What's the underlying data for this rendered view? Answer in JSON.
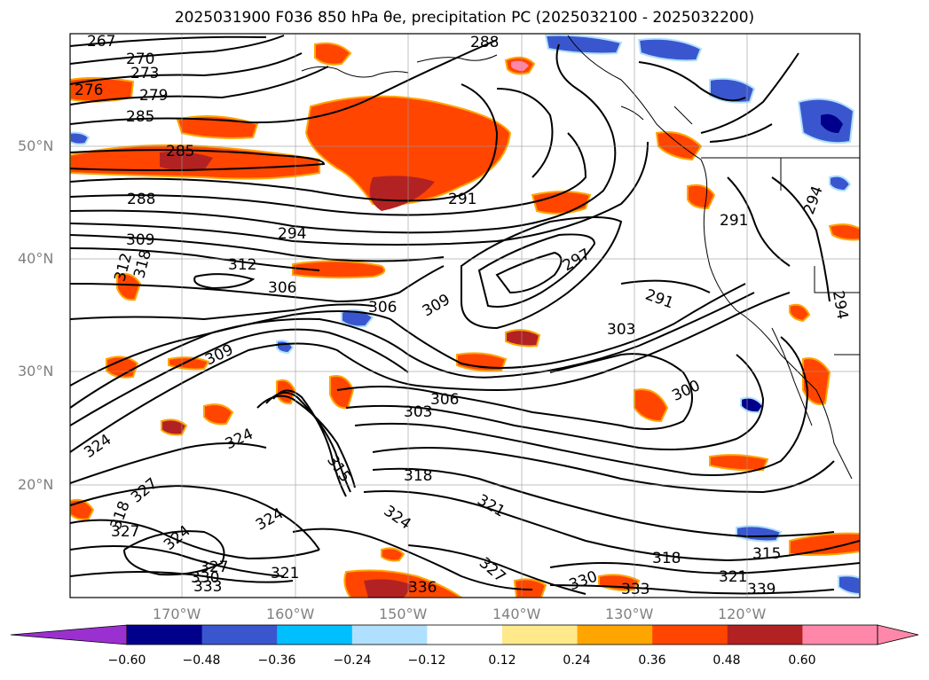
{
  "title": "2025031900 F036 850 hPa θe, precipitation PC (2025032100 - 2025032200)",
  "lat_labels": [
    "50°N",
    "40°N",
    "30°N",
    "20°N"
  ],
  "lon_labels": [
    "170°W",
    "160°W",
    "150°W",
    "140°W",
    "130°W",
    "120°W"
  ],
  "colorbar": {
    "ticks": [
      "−0.60",
      "−0.48",
      "−0.36",
      "−0.24",
      "−0.12",
      "0.12",
      "0.24",
      "0.36",
      "0.48",
      "0.60"
    ],
    "colors": [
      "#9b30d0",
      "#00008b",
      "#3a56cf",
      "#00bfff",
      "#b0e0ff",
      "#ffffff",
      "#ffe98a",
      "#ffa500",
      "#ff4500",
      "#b22222",
      "#ff88aa",
      "#ff88aa"
    ]
  },
  "contour_labels": [
    "267",
    "270",
    "273",
    "276",
    "279",
    "285",
    "285",
    "288",
    "288",
    "291",
    "294",
    "297",
    "291",
    "291",
    "294",
    "294",
    "309",
    "312",
    "306",
    "306",
    "309",
    "303",
    "309",
    "312",
    "318",
    "300",
    "306",
    "303",
    "324",
    "324",
    "315",
    "318",
    "327",
    "318",
    "327",
    "324",
    "327",
    "330",
    "333",
    "321",
    "324",
    "327",
    "330",
    "318",
    "315",
    "321",
    "339",
    "336",
    "333",
    "321",
    "324"
  ]
}
